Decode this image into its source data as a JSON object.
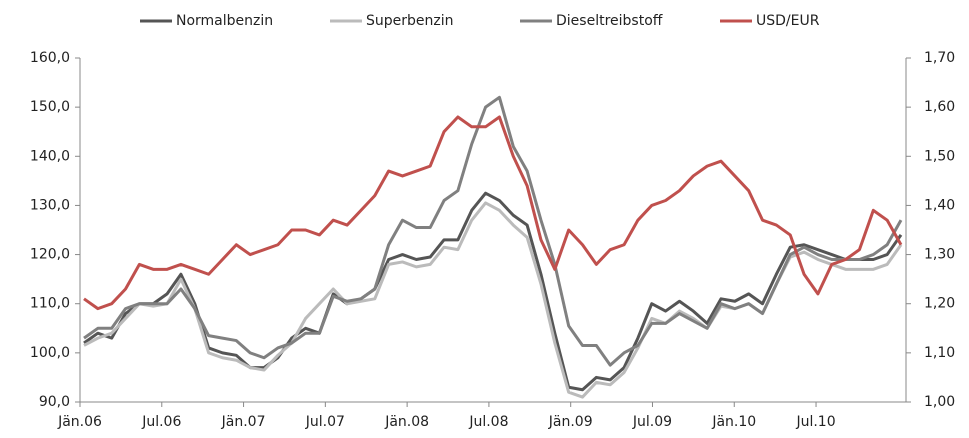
{
  "chart_data": {
    "type": "line",
    "categories": [
      "Jän.06",
      null,
      null,
      null,
      null,
      null,
      "Jul.06",
      null,
      null,
      null,
      null,
      null,
      "Jän.07",
      null,
      null,
      null,
      null,
      null,
      "Jul.07",
      null,
      null,
      null,
      null,
      null,
      "Jän.08",
      null,
      null,
      null,
      null,
      null,
      "Jul.08",
      null,
      null,
      null,
      null,
      null,
      "Jän.09",
      null,
      null,
      null,
      null,
      null,
      "Jul.09",
      null,
      null,
      null,
      null,
      null,
      "Jän.10",
      null,
      null,
      null,
      null,
      null,
      "Jul.10",
      null,
      null,
      null,
      null,
      null
    ],
    "series": [
      {
        "name": "Normalbenzin",
        "color": "#555555",
        "values": [
          102,
          104,
          103,
          108,
          110,
          110,
          112,
          116,
          110,
          101,
          100,
          99.5,
          97,
          97,
          99,
          103,
          105,
          104,
          112,
          110,
          111,
          113,
          119,
          120,
          119,
          119.5,
          123,
          123,
          129,
          132.5,
          131,
          128,
          126,
          116,
          104,
          93,
          92.5,
          95,
          94.5,
          97,
          103,
          110,
          108.5,
          110.5,
          108.5,
          106,
          111,
          110.5,
          112,
          110,
          116,
          121.5,
          122,
          121,
          120,
          119,
          119,
          119,
          120,
          124
        ]
      },
      {
        "name": "Superbenzin",
        "color": "#bbbbbb",
        "values": [
          101.5,
          103,
          104,
          107,
          110,
          109.5,
          110,
          115,
          109,
          100,
          99,
          98.5,
          97,
          96.5,
          99.5,
          102,
          107,
          110,
          113,
          110,
          110.5,
          111,
          118,
          118.5,
          117.5,
          118,
          121.5,
          121,
          127,
          130.5,
          129,
          126,
          123.5,
          114,
          102,
          92,
          91,
          94,
          93.5,
          96,
          101,
          107,
          106,
          108.5,
          107,
          105,
          109.5,
          109,
          110,
          108,
          114,
          119.5,
          120.5,
          119,
          118,
          117,
          117,
          117,
          118,
          122
        ]
      },
      {
        "name": "Dieseltreibstoff",
        "color": "#808080",
        "values": [
          103,
          105,
          105,
          109,
          110,
          110,
          110,
          113,
          109,
          103.5,
          103,
          102.5,
          100,
          99,
          101,
          102,
          104,
          104,
          111.5,
          110.5,
          111,
          113,
          122,
          127,
          125.5,
          125.5,
          131,
          133,
          142.5,
          150,
          152,
          142,
          137,
          127,
          118,
          105.5,
          101.5,
          101.5,
          97.5,
          100,
          101.5,
          106,
          106,
          108,
          106.5,
          105,
          110,
          109,
          110,
          108,
          114,
          120,
          121.5,
          120,
          119,
          119,
          119,
          120,
          122,
          127
        ]
      },
      {
        "name": "USD/EUR",
        "color": "#c0504d",
        "axis": "y2",
        "values": [
          1.21,
          1.19,
          1.2,
          1.23,
          1.28,
          1.27,
          1.27,
          1.28,
          1.27,
          1.26,
          1.29,
          1.32,
          1.3,
          1.31,
          1.32,
          1.35,
          1.35,
          1.34,
          1.37,
          1.36,
          1.39,
          1.42,
          1.47,
          1.46,
          1.47,
          1.48,
          1.55,
          1.58,
          1.56,
          1.56,
          1.58,
          1.5,
          1.44,
          1.33,
          1.27,
          1.35,
          1.32,
          1.28,
          1.31,
          1.32,
          1.37,
          1.4,
          1.41,
          1.43,
          1.46,
          1.48,
          1.49,
          1.46,
          1.43,
          1.37,
          1.36,
          1.34,
          1.26,
          1.22,
          1.28,
          1.29,
          1.31,
          1.39,
          1.37,
          1.32
        ]
      }
    ],
    "ylim": [
      90,
      160
    ],
    "yticks": [
      {
        "value": 90,
        "label": "90,0"
      },
      {
        "value": 100,
        "label": "100,0"
      },
      {
        "value": 110,
        "label": "110,0"
      },
      {
        "value": 120,
        "label": "120,0"
      },
      {
        "value": 130,
        "label": "130,0"
      },
      {
        "value": 140,
        "label": "140,0"
      },
      {
        "value": 150,
        "label": "150,0"
      },
      {
        "value": 160,
        "label": "160,0"
      }
    ],
    "y2lim": [
      1.0,
      1.7
    ],
    "y2ticks": [
      {
        "value": 1.0,
        "label": "1,00"
      },
      {
        "value": 1.1,
        "label": "1,10"
      },
      {
        "value": 1.2,
        "label": "1,20"
      },
      {
        "value": 1.3,
        "label": "1,30"
      },
      {
        "value": 1.4,
        "label": "1,40"
      },
      {
        "value": 1.5,
        "label": "1,50"
      },
      {
        "value": 1.6,
        "label": "1,60"
      },
      {
        "value": 1.7,
        "label": "1,70"
      }
    ],
    "y2color": "#c0504d",
    "legend": "top"
  }
}
